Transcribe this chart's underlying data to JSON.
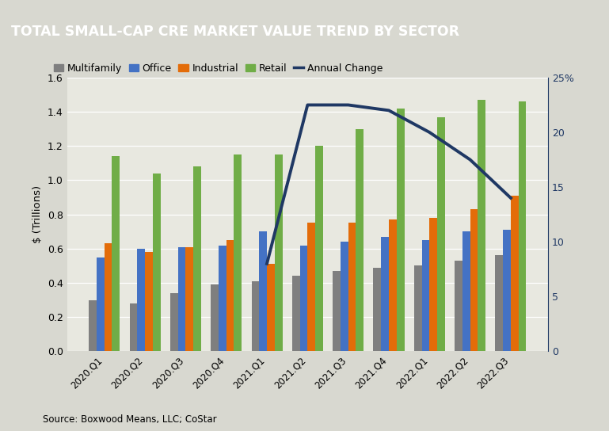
{
  "title": "TOTAL SMALL-CAP CRE MARKET VALUE TREND BY SECTOR",
  "title_bg_color": "#636363",
  "title_text_color": "#ffffff",
  "outer_bg_color": "#d8d8d0",
  "plot_bg_color": "#e8e8e0",
  "source_text": "Source: Boxwood Means, LLC; CoStar",
  "categories": [
    "2020.Q1",
    "2020.Q2",
    "2020.Q3",
    "2020.Q4",
    "2021.Q1",
    "2021.Q2",
    "2021.Q3",
    "2021.Q4",
    "2022.Q1",
    "2022.Q2",
    "2022.Q3"
  ],
  "multifamily": [
    0.3,
    0.28,
    0.34,
    0.39,
    0.41,
    0.44,
    0.47,
    0.49,
    0.5,
    0.53,
    0.56
  ],
  "office": [
    0.55,
    0.6,
    0.61,
    0.62,
    0.7,
    0.62,
    0.64,
    0.67,
    0.65,
    0.7,
    0.71
  ],
  "industrial": [
    0.63,
    0.58,
    0.61,
    0.65,
    0.51,
    0.75,
    0.75,
    0.77,
    0.78,
    0.83,
    0.91
  ],
  "retail": [
    1.14,
    1.04,
    1.08,
    1.15,
    1.15,
    1.2,
    1.3,
    1.42,
    1.37,
    1.47,
    1.46
  ],
  "annual_change": [
    null,
    null,
    null,
    null,
    8.0,
    22.5,
    22.5,
    22.0,
    20.0,
    17.5,
    14.0
  ],
  "multifamily_color": "#7f7f7f",
  "office_color": "#4472c4",
  "industrial_color": "#e36c09",
  "retail_color": "#70ad47",
  "annual_change_color": "#1f3864",
  "ylabel_left": "$ (Trillions)",
  "ylim_left": [
    0,
    1.6
  ],
  "ylim_right": [
    0,
    25
  ],
  "yticks_left": [
    0.0,
    0.2,
    0.4,
    0.6,
    0.8,
    1.0,
    1.2,
    1.4,
    1.6
  ],
  "yticks_right": [
    0,
    5,
    10,
    15,
    20,
    25
  ],
  "ytick_labels_right": [
    "0",
    "5",
    "10",
    "15",
    "20",
    "25%"
  ],
  "bar_width": 0.19
}
